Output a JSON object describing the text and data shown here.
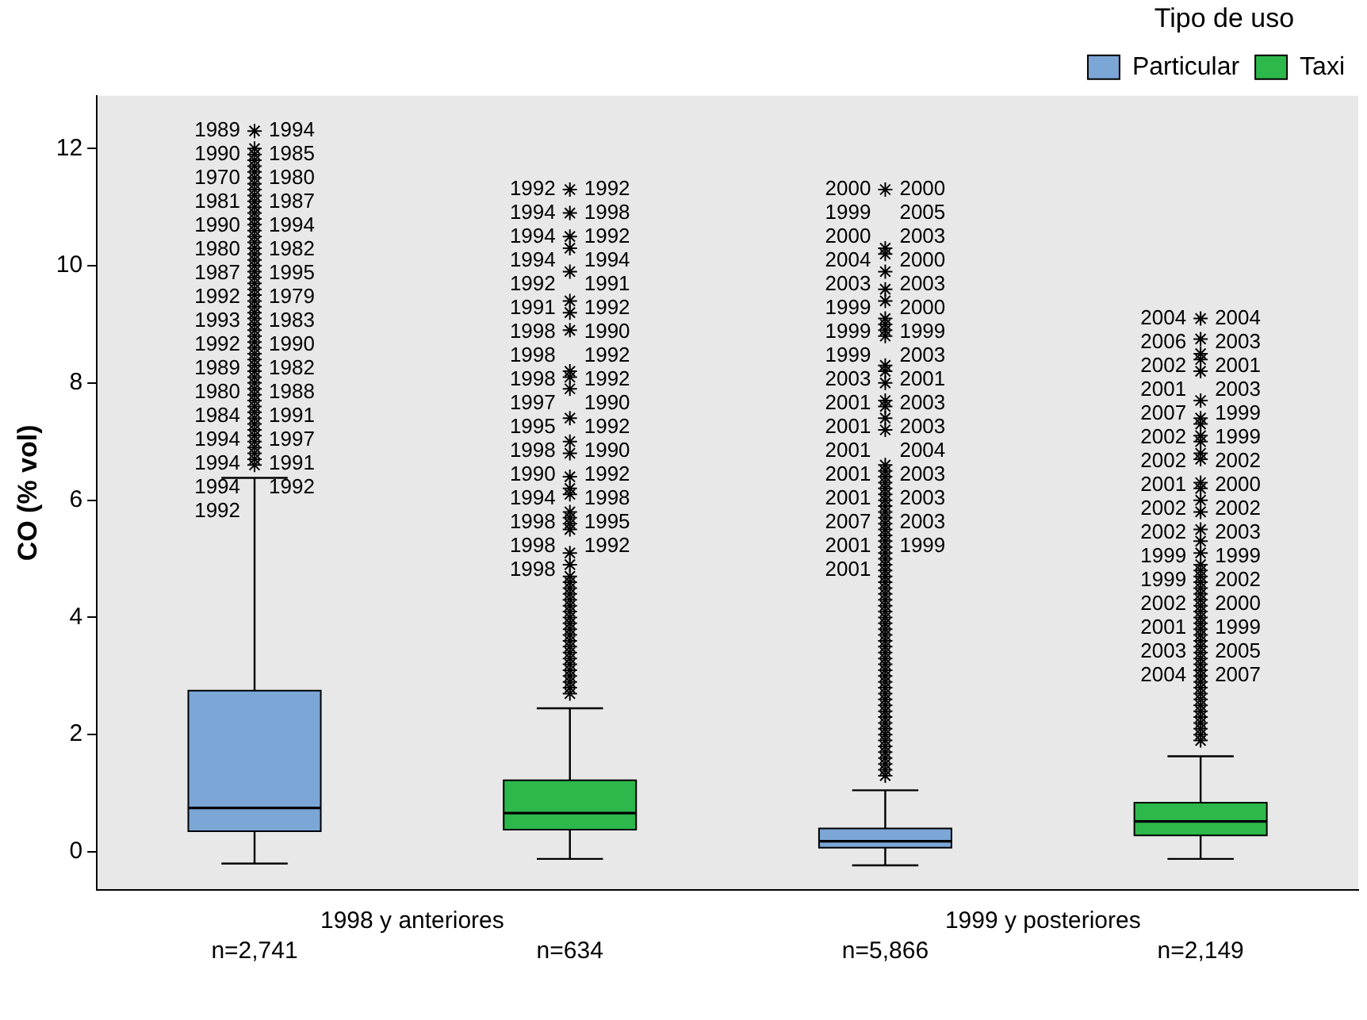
{
  "chart_data": {
    "type": "box",
    "ylabel": "CO (% vol)",
    "legend_title": "Tipo de uso",
    "legend": "top right",
    "marker": "star",
    "grid": false,
    "categories": [
      "n=2,741",
      "n=634",
      "n=5,866",
      "n=2,149"
    ],
    "ylim": [
      -0.65,
      12.9
    ],
    "yticks": [
      0,
      2,
      4,
      6,
      8,
      10,
      12
    ],
    "series": [
      {
        "name": "Particular",
        "color": "#7ba6d6",
        "boxes": [
          {
            "low": -0.2,
            "q1": 0.35,
            "median": 0.75,
            "q3": 2.75,
            "high": 6.38,
            "outliers": [
              6.6,
              6.7,
              6.8,
              6.9,
              7.0,
              7.1,
              7.2,
              7.3,
              7.4,
              7.5,
              7.6,
              7.7,
              7.8,
              7.9,
              8.0,
              8.1,
              8.2,
              8.3,
              8.4,
              8.5,
              8.6,
              8.7,
              8.8,
              8.9,
              9.0,
              9.1,
              9.2,
              9.3,
              9.4,
              9.5,
              9.6,
              9.7,
              9.8,
              9.9,
              10.0,
              10.1,
              10.2,
              10.3,
              10.4,
              10.5,
              10.6,
              10.7,
              10.8,
              10.9,
              11.0,
              11.1,
              11.2,
              11.3,
              11.4,
              11.5,
              11.6,
              11.7,
              11.8,
              11.9,
              12.0,
              12.3
            ]
          },
          null,
          {
            "low": -0.23,
            "q1": 0.07,
            "median": 0.18,
            "q3": 0.4,
            "high": 1.05,
            "outliers": [
              1.3,
              1.4,
              1.5,
              1.6,
              1.7,
              1.8,
              1.9,
              2.0,
              2.1,
              2.2,
              2.3,
              2.4,
              2.5,
              2.6,
              2.7,
              2.8,
              2.9,
              3.0,
              3.1,
              3.2,
              3.3,
              3.4,
              3.5,
              3.6,
              3.7,
              3.8,
              3.9,
              4.0,
              4.1,
              4.2,
              4.3,
              4.4,
              4.5,
              4.6,
              4.7,
              4.8,
              4.9,
              5.0,
              5.1,
              5.2,
              5.3,
              5.4,
              5.5,
              5.6,
              5.7,
              5.8,
              5.9,
              6.0,
              6.1,
              6.2,
              6.3,
              6.4,
              6.5,
              6.6,
              7.2,
              7.4,
              7.6,
              7.7,
              8.0,
              8.2,
              8.3,
              8.8,
              8.9,
              9.0,
              9.1,
              9.4,
              9.6,
              9.9,
              10.2,
              10.3,
              11.3
            ]
          },
          null
        ]
      },
      {
        "name": "Taxi",
        "color": "#2db84b",
        "boxes": [
          null,
          {
            "low": -0.12,
            "q1": 0.38,
            "median": 0.66,
            "q3": 1.22,
            "high": 2.45,
            "outliers": [
              2.7,
              2.8,
              2.9,
              3.0,
              3.1,
              3.2,
              3.3,
              3.4,
              3.5,
              3.6,
              3.7,
              3.8,
              3.9,
              4.0,
              4.1,
              4.2,
              4.3,
              4.4,
              4.5,
              4.6,
              4.7,
              4.9,
              5.1,
              5.5,
              5.6,
              5.7,
              5.8,
              6.1,
              6.2,
              6.4,
              6.8,
              7.0,
              7.4,
              7.9,
              8.1,
              8.2,
              8.9,
              9.2,
              9.4,
              9.9,
              10.3,
              10.5,
              10.9,
              11.3
            ]
          },
          null,
          {
            "low": -0.12,
            "q1": 0.28,
            "median": 0.52,
            "q3": 0.84,
            "high": 1.63,
            "outliers": [
              1.9,
              2.0,
              2.1,
              2.2,
              2.3,
              2.4,
              2.5,
              2.6,
              2.7,
              2.8,
              2.9,
              3.0,
              3.1,
              3.2,
              3.3,
              3.4,
              3.5,
              3.6,
              3.7,
              3.8,
              3.9,
              4.0,
              4.1,
              4.2,
              4.3,
              4.4,
              4.5,
              4.6,
              4.7,
              4.8,
              4.9,
              5.1,
              5.3,
              5.5,
              5.8,
              6.0,
              6.2,
              6.3,
              6.7,
              6.8,
              7.0,
              7.1,
              7.3,
              7.4,
              7.7,
              8.2,
              8.4,
              8.5,
              8.75,
              9.1
            ]
          }
        ]
      }
    ],
    "annotations": [
      "1998 y anteriores",
      "1999 y posteriores",
      "1989",
      "1994",
      "1990",
      "1985",
      "1970",
      "1980",
      "1981",
      "1987",
      "1990",
      "1994",
      "1980",
      "1982",
      "1987",
      "1995",
      "1992",
      "1979",
      "1993",
      "1983",
      "1992",
      "1990",
      "1989",
      "1982",
      "1980",
      "1988",
      "1984",
      "1991",
      "1994",
      "1997",
      "1994",
      "1991",
      "1994",
      "1992",
      "1992",
      "1992",
      "1992",
      "1994",
      "1998",
      "1994",
      "1992",
      "1994",
      "1994",
      "1992",
      "1991",
      "1991",
      "1992",
      "1998",
      "1990",
      "1998",
      "1992",
      "1998",
      "1992",
      "1997",
      "1990",
      "1995",
      "1992",
      "1998",
      "1990",
      "1990",
      "1992",
      "1994",
      "1998",
      "1998",
      "1995",
      "1998",
      "1992",
      "1998",
      "2000",
      "2000",
      "1999",
      "2005",
      "2000",
      "2003",
      "2004",
      "2000",
      "2003",
      "2003",
      "1999",
      "2000",
      "1999",
      "1999",
      "1999",
      "2003",
      "2003",
      "2001",
      "2001",
      "2003",
      "2001",
      "2003",
      "2001",
      "2004",
      "2001",
      "2003",
      "2001",
      "2003",
      "2007",
      "2003",
      "2001",
      "1999",
      "2001",
      "2004",
      "2004",
      "2006",
      "2003",
      "2002",
      "2001",
      "2001",
      "2003",
      "2007",
      "1999",
      "2002",
      "1999",
      "2002",
      "2002",
      "2001",
      "2000",
      "2002",
      "2002",
      "2002",
      "2003",
      "1999",
      "1999",
      "1999",
      "2002",
      "2002",
      "2000",
      "2001",
      "1999",
      "2003",
      "2005",
      "2004",
      "2007"
    ]
  }
}
